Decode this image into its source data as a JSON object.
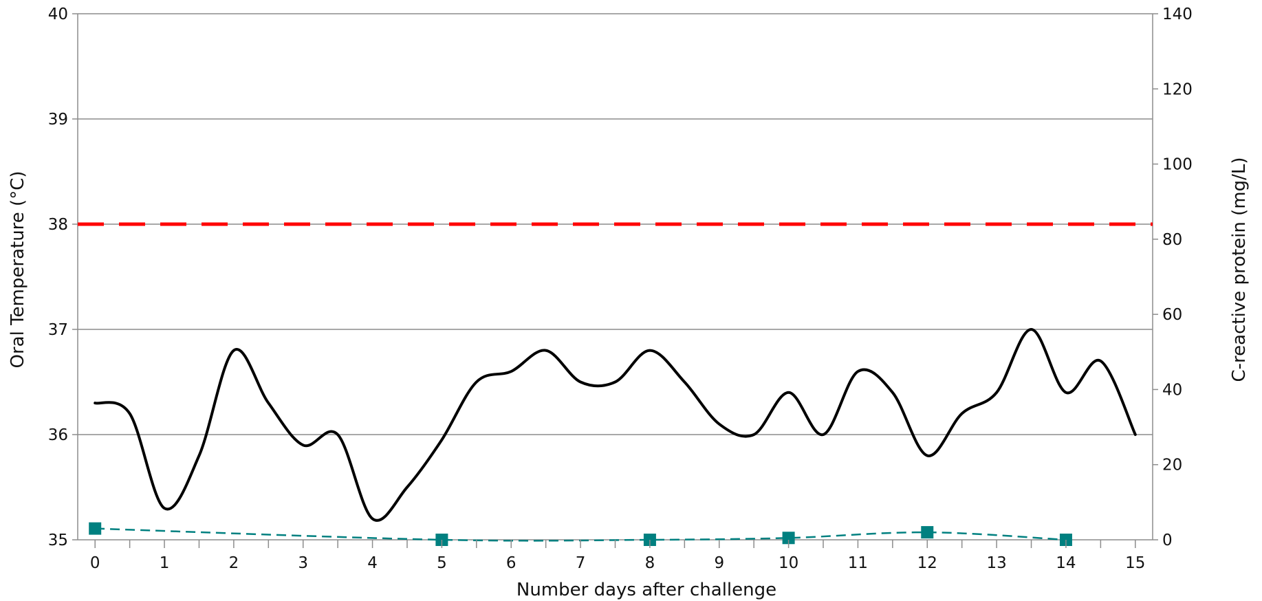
{
  "chart_data": {
    "type": "line",
    "title": "",
    "xlabel": "Number days after challenge",
    "ylabel_left": "Oral Temperature (°C)",
    "ylabel_right": "C-reactive protein (mg/L)",
    "xlim": [
      -0.25,
      15.25
    ],
    "ylim_left": [
      35,
      40
    ],
    "ylim_right": [
      0,
      140
    ],
    "x_ticks": [
      0,
      1,
      2,
      3,
      4,
      5,
      6,
      7,
      8,
      9,
      10,
      11,
      12,
      13,
      14,
      15
    ],
    "y_left_ticks": [
      35,
      36,
      37,
      38,
      39,
      40
    ],
    "y_right_ticks": [
      0,
      20,
      40,
      60,
      80,
      100,
      120,
      140
    ],
    "grid": "horizontal major gridlines",
    "threshold": {
      "axis": "left",
      "value": 38,
      "color": "#ff0000",
      "style": "dashed"
    },
    "series": [
      {
        "axis": "left",
        "color": "#000000",
        "style": "solid smooth",
        "x": [
          0,
          0.5,
          1,
          1.5,
          2,
          2.5,
          3,
          3.5,
          4,
          4.5,
          5,
          5.5,
          6,
          6.5,
          7,
          7.5,
          8,
          8.5,
          9,
          9.5,
          10,
          10.5,
          11,
          11.5,
          12,
          12.5,
          13,
          13.5,
          14,
          14.5,
          15
        ],
        "values": [
          36.3,
          36.2,
          35.3,
          35.8,
          36.8,
          36.3,
          35.9,
          36.0,
          35.2,
          35.5,
          35.95,
          36.5,
          36.6,
          36.8,
          36.5,
          36.5,
          36.8,
          36.5,
          36.1,
          36.0,
          36.4,
          36.0,
          36.6,
          36.4,
          35.8,
          36.2,
          36.4,
          37.0,
          36.4,
          36.7,
          36.0
        ]
      },
      {
        "axis": "right",
        "color": "#008080",
        "style": "dashed with square markers",
        "x": [
          0,
          5,
          8,
          10,
          12,
          14
        ],
        "values": [
          3,
          0,
          0,
          0.5,
          2,
          0
        ]
      }
    ]
  }
}
